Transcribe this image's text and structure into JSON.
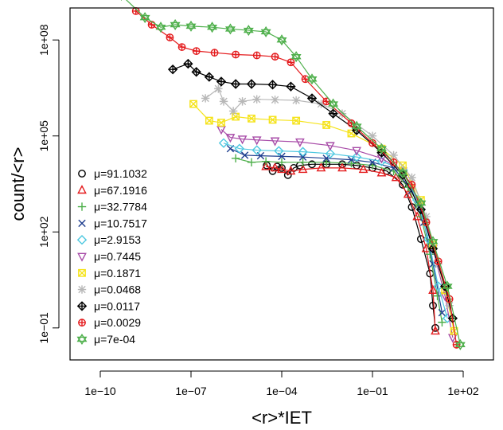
{
  "chart_data": {
    "type": "scatter",
    "title": "",
    "xlabel": "<r>*IET",
    "ylabel": "count/<r>",
    "x_scale": "log10",
    "y_scale": "log10",
    "xlim": [
      1e-11,
      1000.0
    ],
    "ylim": [
      0.01,
      1000000000.0
    ],
    "x_ticks": [
      {
        "value": 1e-10,
        "label": "1e−10"
      },
      {
        "value": 1e-07,
        "label": "1e−07"
      },
      {
        "value": 0.0001,
        "label": "1e−04"
      },
      {
        "value": 0.1,
        "label": "1e−01"
      },
      {
        "value": 100.0,
        "label": "1e+02"
      }
    ],
    "y_ticks": [
      {
        "value": 0.1,
        "label": "1e−01"
      },
      {
        "value": 100.0,
        "label": "1e+02"
      },
      {
        "value": 100000.0,
        "label": "1e+05"
      },
      {
        "value": 100000000.0,
        "label": "1e+08"
      }
    ],
    "grid": false,
    "legend_position": "left",
    "series": [
      {
        "name": "μ=91.1032",
        "color": "#000000",
        "marker": "circle",
        "points": [
          [
            3.2e-05,
            12000.0
          ],
          [
            5e-05,
            8000.0
          ],
          [
            7e-05,
            11000.0
          ],
          [
            0.0001,
            10000.0
          ],
          [
            0.00016,
            6000.0
          ],
          [
            0.00025,
            10000.0
          ],
          [
            0.0004,
            12000.0
          ],
          [
            0.001,
            13000.0
          ],
          [
            0.003,
            13000.0
          ],
          [
            0.01,
            13000.0
          ],
          [
            0.03,
            12000.0
          ],
          [
            0.1,
            10000.0
          ],
          [
            0.3,
            8000.0
          ],
          [
            1,
            3000.0
          ],
          [
            2,
            600
          ],
          [
            4,
            60
          ],
          [
            8,
            5
          ],
          [
            10,
            0.5
          ],
          [
            12,
            0.1
          ]
        ]
      },
      {
        "name": "μ=67.1916",
        "color": "#e41a1c",
        "marker": "triangle",
        "points": [
          [
            3e-05,
            11000.0
          ],
          [
            6e-05,
            10000.0
          ],
          [
            0.0001,
            9000.0
          ],
          [
            0.0002,
            8000.0
          ],
          [
            0.0005,
            9000.0
          ],
          [
            0.002,
            10000.0
          ],
          [
            0.01,
            10000.0
          ],
          [
            0.05,
            9000.0
          ],
          [
            0.2,
            7000.0
          ],
          [
            0.6,
            5000.0
          ],
          [
            1.5,
            1500
          ],
          [
            3,
            300
          ],
          [
            6,
            30
          ],
          [
            10,
            1.5
          ],
          [
            12,
            0.08
          ]
        ]
      },
      {
        "name": "μ=32.7784",
        "color": "#4daf4a",
        "marker": "plus",
        "points": [
          [
            3e-06,
            20000.0
          ],
          [
            1e-05,
            15000.0
          ],
          [
            3e-05,
            16000.0
          ],
          [
            0.0001,
            15000.0
          ],
          [
            0.0005,
            15000.0
          ],
          [
            0.003,
            15000.0
          ],
          [
            0.02,
            14000.0
          ],
          [
            0.1,
            12000.0
          ],
          [
            0.5,
            8000.0
          ],
          [
            1.5,
            2500
          ],
          [
            4,
            300
          ],
          [
            8,
            20
          ],
          [
            14,
            1
          ],
          [
            20,
            0.15
          ]
        ]
      },
      {
        "name": "μ=10.7517",
        "color": "#1f3f8f",
        "marker": "x",
        "points": [
          [
            2e-06,
            40000.0
          ],
          [
            6e-06,
            25000.0
          ],
          [
            2e-05,
            24000.0
          ],
          [
            0.0001,
            23000.0
          ],
          [
            0.0005,
            22000.0
          ],
          [
            0.003,
            20000.0
          ],
          [
            0.02,
            18000.0
          ],
          [
            0.1,
            15000.0
          ],
          [
            0.5,
            10000.0
          ],
          [
            2,
            2000.0
          ],
          [
            5,
            200
          ],
          [
            10,
            10
          ],
          [
            20,
            0.3
          ]
        ]
      },
      {
        "name": "μ=2.9153",
        "color": "#4ec8e0",
        "marker": "diamond",
        "points": [
          [
            1.2e-06,
            60000.0
          ],
          [
            4e-06,
            40000.0
          ],
          [
            1.5e-05,
            36000.0
          ],
          [
            8e-05,
            34000.0
          ],
          [
            0.0005,
            32000.0
          ],
          [
            0.004,
            28000.0
          ],
          [
            0.03,
            22000.0
          ],
          [
            0.2,
            16000.0
          ],
          [
            1,
            9000.0
          ],
          [
            3,
            1000.0
          ],
          [
            7,
            60
          ],
          [
            15,
            2
          ],
          [
            30,
            0.2
          ]
        ]
      },
      {
        "name": "μ=0.7445",
        "color": "#a84ca8",
        "marker": "triangle-down",
        "points": [
          [
            1e-06,
            160000.0
          ],
          [
            2e-06,
            90000.0
          ],
          [
            5e-06,
            80000.0
          ],
          [
            1.5e-05,
            75000.0
          ],
          [
            6e-05,
            70000.0
          ],
          [
            0.0004,
            65000.0
          ],
          [
            0.004,
            50000.0
          ],
          [
            0.03,
            35000.0
          ],
          [
            0.2,
            20000.0
          ],
          [
            1,
            8000.0
          ],
          [
            4,
            700
          ],
          [
            10,
            30
          ],
          [
            25,
            1
          ],
          [
            45,
            0.05
          ]
        ]
      },
      {
        "name": "μ=0.1871",
        "color": "#f5e31a",
        "marker": "square-x",
        "points": [
          [
            1.2e-07,
            1000000.0
          ],
          [
            4e-07,
            300000.0
          ],
          [
            1e-06,
            260000.0
          ],
          [
            3e-06,
            400000.0
          ],
          [
            1e-05,
            350000.0
          ],
          [
            5e-05,
            320000.0
          ],
          [
            0.0003,
            300000.0
          ],
          [
            0.003,
            220000.0
          ],
          [
            0.02,
            120000.0
          ],
          [
            0.2,
            40000.0
          ],
          [
            1,
            12000.0
          ],
          [
            4,
            1000.0
          ],
          [
            10,
            40
          ],
          [
            25,
            1.5
          ],
          [
            50,
            0.08
          ]
        ]
      },
      {
        "name": "μ=0.0468",
        "color": "#b8b8b8",
        "marker": "asterisk",
        "points": [
          [
            3e-07,
            1500000.0
          ],
          [
            8e-07,
            3000000.0
          ],
          [
            1.2e-06,
            1200000.0
          ],
          [
            2.5e-06,
            600000.0
          ],
          [
            5e-06,
            1200000.0
          ],
          [
            1.5e-05,
            1400000.0
          ],
          [
            6e-05,
            1350000.0
          ],
          [
            0.0003,
            1300000.0
          ],
          [
            0.002,
            1000000.0
          ],
          [
            0.01,
            500000.0
          ],
          [
            0.1,
            100000.0
          ],
          [
            0.5,
            25000.0
          ],
          [
            2,
            5000.0
          ],
          [
            6,
            300
          ],
          [
            15,
            10
          ],
          [
            35,
            0.5
          ]
        ]
      },
      {
        "name": "μ=0.0117",
        "color": "#000000",
        "marker": "diamond-plus",
        "points": [
          [
            2.5e-08,
            12000000.0
          ],
          [
            8e-08,
            18000000.0
          ],
          [
            1.5e-07,
            10000000.0
          ],
          [
            4e-07,
            7000000.0
          ],
          [
            1e-06,
            5000000.0
          ],
          [
            3e-06,
            4200000.0
          ],
          [
            1e-05,
            4200000.0
          ],
          [
            5e-05,
            4000000.0
          ],
          [
            0.0002,
            3500000.0
          ],
          [
            0.001,
            1500000.0
          ],
          [
            0.005,
            500000.0
          ],
          [
            0.03,
            150000.0
          ],
          [
            0.2,
            30000.0
          ],
          [
            1,
            6000.0
          ],
          [
            4,
            500
          ],
          [
            10,
            30
          ],
          [
            25,
            2
          ],
          [
            45,
            0.2
          ]
        ]
      },
      {
        "name": "μ=0.0029",
        "color": "#e41a1c",
        "marker": "circle-plus",
        "points": [
          [
            1.5e-09,
            800000000.0
          ],
          [
            5e-09,
            300000000.0
          ],
          [
            2e-08,
            120000000.0
          ],
          [
            5e-08,
            60000000.0
          ],
          [
            1.5e-07,
            45000000.0
          ],
          [
            6e-07,
            40000000.0
          ],
          [
            3e-06,
            35000000.0
          ],
          [
            1.5e-05,
            33000000.0
          ],
          [
            6e-05,
            30000000.0
          ],
          [
            0.0002,
            20000000.0
          ],
          [
            0.0006,
            6000000.0
          ],
          [
            0.003,
            1200000.0
          ],
          [
            0.02,
            250000.0
          ],
          [
            0.1,
            60000.0
          ],
          [
            0.5,
            15000.0
          ],
          [
            2,
            3000.0
          ],
          [
            6,
            200
          ],
          [
            15,
            12
          ],
          [
            35,
            0.8
          ],
          [
            60,
            0.03
          ]
        ]
      },
      {
        "name": "μ=7e-04",
        "color": "#4daf4a",
        "marker": "star-david",
        "points": [
          [
            5e-10,
            2500000000.0
          ],
          [
            3e-09,
            500000000.0
          ],
          [
            1e-08,
            250000000.0
          ],
          [
            3e-08,
            300000000.0
          ],
          [
            1e-07,
            270000000.0
          ],
          [
            5e-07,
            250000000.0
          ],
          [
            2e-06,
            220000000.0
          ],
          [
            8e-06,
            200000000.0
          ],
          [
            3e-05,
            180000000.0
          ],
          [
            0.0001,
            100000000.0
          ],
          [
            0.0003,
            30000000.0
          ],
          [
            0.001,
            6000000.0
          ],
          [
            0.005,
            1000000.0
          ],
          [
            0.03,
            200000.0
          ],
          [
            0.2,
            40000.0
          ],
          [
            1,
            7000.0
          ],
          [
            4,
            800
          ],
          [
            10,
            50
          ],
          [
            30,
            2
          ],
          [
            80,
            0.03
          ]
        ]
      }
    ]
  }
}
